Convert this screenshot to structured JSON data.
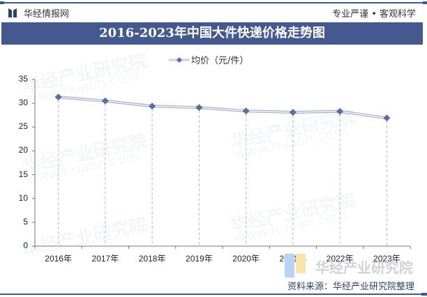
{
  "header": {
    "brand": "华经情报网",
    "slogan": "专业严谨 • 客观科学",
    "title": "2016-2023年中国大件快递价格走势图"
  },
  "legend": {
    "label": "均价（元/件）"
  },
  "footer": {
    "source": "资料来源：华经产业研究院整理",
    "watermark": "华经产业研究院"
  },
  "watermarks": {
    "text": "华经产业研究院",
    "url": "www.huaon.com"
  },
  "colors": {
    "title_bar": "#45598f",
    "series_line": "#a9b4cc",
    "marker": "#5a6f99"
  },
  "chart_data": {
    "type": "line",
    "title": "2016-2023年中国大件快递价格走势图",
    "xlabel": "",
    "ylabel": "",
    "categories": [
      "2016年",
      "2017年",
      "2018年",
      "2019年",
      "2020年",
      "2021年",
      "2022年",
      "2023年"
    ],
    "series": [
      {
        "name": "均价（元/件）",
        "values": [
          31.3,
          30.5,
          29.4,
          29.1,
          28.4,
          28.1,
          28.3,
          26.9
        ]
      }
    ],
    "yticks": [
      0,
      5,
      10,
      15,
      20,
      25,
      30,
      35
    ],
    "ylim": [
      0,
      35
    ],
    "grid": false,
    "drop_lines": true,
    "legend_position": "top"
  }
}
